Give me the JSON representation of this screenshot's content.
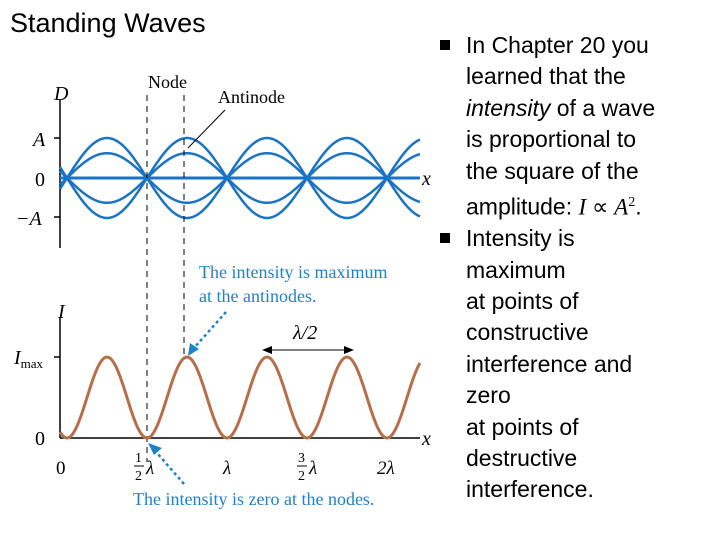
{
  "slide": {
    "title": "Standing Waves"
  },
  "figure": {
    "top_graph": {
      "y_axis_label": "D",
      "x_axis_label": "x",
      "tick_A": "A",
      "tick_0": "0",
      "tick_neg_A": "−A",
      "node_label": "Node",
      "antinode_label": "Antinode",
      "wave_color": "#1a73c4"
    },
    "callout_max": {
      "line1": "The intensity is maximum",
      "line2": "at the antinodes."
    },
    "bottom_graph": {
      "y_axis_label": "I",
      "imax_label_main": "I",
      "imax_label_sub": "max",
      "tick_0": "0",
      "x_axis_label": "x",
      "wavelength_label": "λ/2",
      "x_ticks": {
        "zero": "0",
        "half_num": "1",
        "half_den": "2",
        "half_sym": "λ",
        "lambda": "λ",
        "three_half_num": "3",
        "three_half_den": "2",
        "three_half_sym": "λ",
        "two_lambda": "2λ"
      },
      "curve_color": "#b5704a"
    },
    "callout_zero": {
      "text": "The intensity is zero at the nodes."
    },
    "callout_color": "#1e82c8"
  },
  "bullets": [
    {
      "line1": "In Chapter 20 you",
      "line2": "learned that the",
      "line3_italic": "intensity",
      "line3_rest": " of a wave",
      "line4": "is proportional to",
      "line5": "the square of the",
      "line6_text": "amplitude: ",
      "line6_math_I": "I",
      "line6_math_prop": " ∝ ",
      "line6_math_A": "A",
      "line6_math_exp": "2",
      "line6_period": "."
    },
    {
      "lines": [
        "Intensity is",
        "maximum",
        "at points of",
        "constructive",
        "interference and",
        "zero",
        "at points of",
        "destructive",
        "interference."
      ]
    }
  ]
}
